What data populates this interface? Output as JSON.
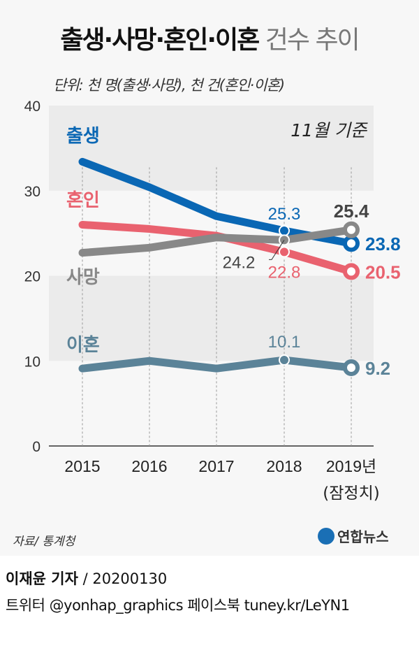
{
  "title_main": "출생·사망·혼인·이혼",
  "title_sub": " 건수 추이",
  "unit": "단위: 천 명(출생·사망), 천 건(혼인·이혼)",
  "note": "11월 기준",
  "source": "자료/ 통계청",
  "logo": "연합뉴스",
  "reporter": "이재윤 기자",
  "date": " / 20200130",
  "social": "트위터 @yonhap_graphics  페이스북 tuney.kr/LeYN1",
  "chart_data": {
    "type": "line",
    "categories": [
      "2015",
      "2016",
      "2017",
      "2018",
      "2019년"
    ],
    "category_note": "(잠정치)",
    "ylim": [
      0,
      40
    ],
    "yticks": [
      0,
      10,
      20,
      30,
      40
    ],
    "grid": "alternating horizontal bands, dotted vertical lines",
    "series": [
      {
        "name": "출생",
        "color": "#0a67b4",
        "values": [
          33.4,
          30.4,
          27.0,
          25.3,
          23.8
        ],
        "labels": {
          "3": "25.3",
          "4": "23.8"
        }
      },
      {
        "name": "혼인",
        "color": "#e9626f",
        "values": [
          26.0,
          25.5,
          24.7,
          22.8,
          20.5
        ],
        "labels": {
          "3": "22.8",
          "4": "20.5"
        }
      },
      {
        "name": "사망",
        "color": "#888888",
        "values": [
          22.7,
          23.3,
          24.5,
          24.2,
          25.4
        ],
        "labels": {
          "3": "24.2",
          "4": "25.4"
        }
      },
      {
        "name": "이혼",
        "color": "#5b8398",
        "values": [
          9.1,
          10.0,
          9.1,
          10.1,
          9.2
        ],
        "labels": {
          "3": "10.1",
          "4": "9.2"
        }
      }
    ]
  }
}
